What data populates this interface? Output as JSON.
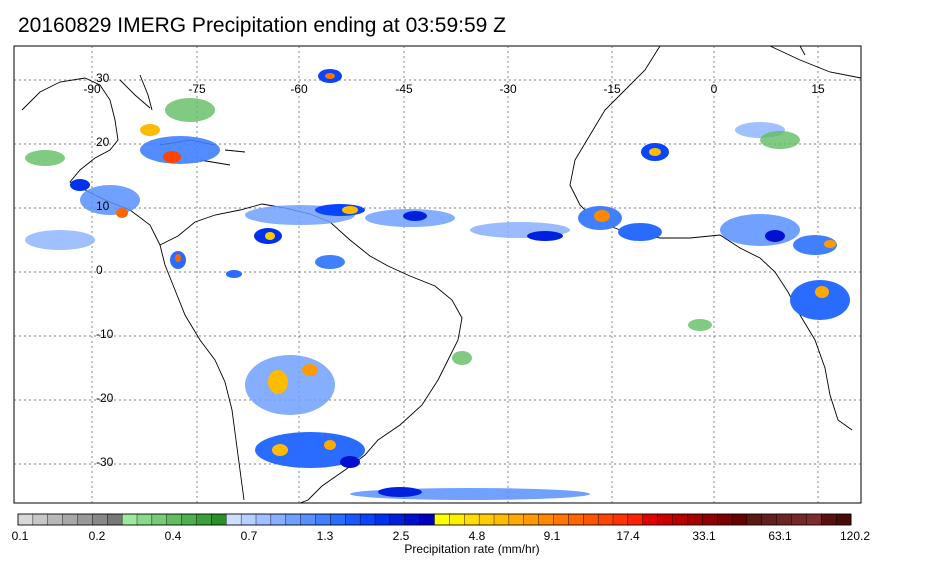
{
  "title": "20160829 IMERG Precipitation ending at 03:59:59 Z",
  "map": {
    "lon_labels": [
      "-90",
      "-75",
      "-60",
      "-45",
      "-30",
      "-15",
      "0",
      "15"
    ],
    "lat_labels": [
      "30",
      "20",
      "10",
      "0",
      "-10",
      "-20",
      "-30"
    ]
  },
  "colorbar": {
    "label": "Precipitation rate (mm/hr)",
    "tick_labels": [
      "0.1",
      "0.2",
      "0.4",
      "0.7",
      "1.3",
      "2.5",
      "4.8",
      "9.1",
      "17.4",
      "33.1",
      "63.1",
      "120.2"
    ],
    "colors": [
      "#d8d8d8",
      "#c8c8c8",
      "#b8b8b8",
      "#a8a8a8",
      "#989898",
      "#888888",
      "#787878",
      "#9fe89f",
      "#8ad98a",
      "#76cb76",
      "#62bd62",
      "#4eaf4e",
      "#3aa03a",
      "#269226",
      "#cfe0ff",
      "#b8d0ff",
      "#a0c0ff",
      "#88b0ff",
      "#70a0ff",
      "#5890ff",
      "#4080ff",
      "#2a6cff",
      "#1a58ff",
      "#0a44ff",
      "#0030f0",
      "#0020e0",
      "#0010d0",
      "#0000c0",
      "#ffff00",
      "#ffee00",
      "#ffdd00",
      "#ffcc00",
      "#ffbb00",
      "#ffaa00",
      "#ff9900",
      "#ff8800",
      "#ff7700",
      "#ff6600",
      "#ff5500",
      "#ff4400",
      "#ff3300",
      "#ff2200",
      "#e00000",
      "#cc0000",
      "#b80000",
      "#a40000",
      "#900000",
      "#7c0000",
      "#680000",
      "#5a1a14",
      "#642020",
      "#6c2424",
      "#742828",
      "#7c2c2c",
      "#5a1010",
      "#4a0a0a"
    ]
  }
}
